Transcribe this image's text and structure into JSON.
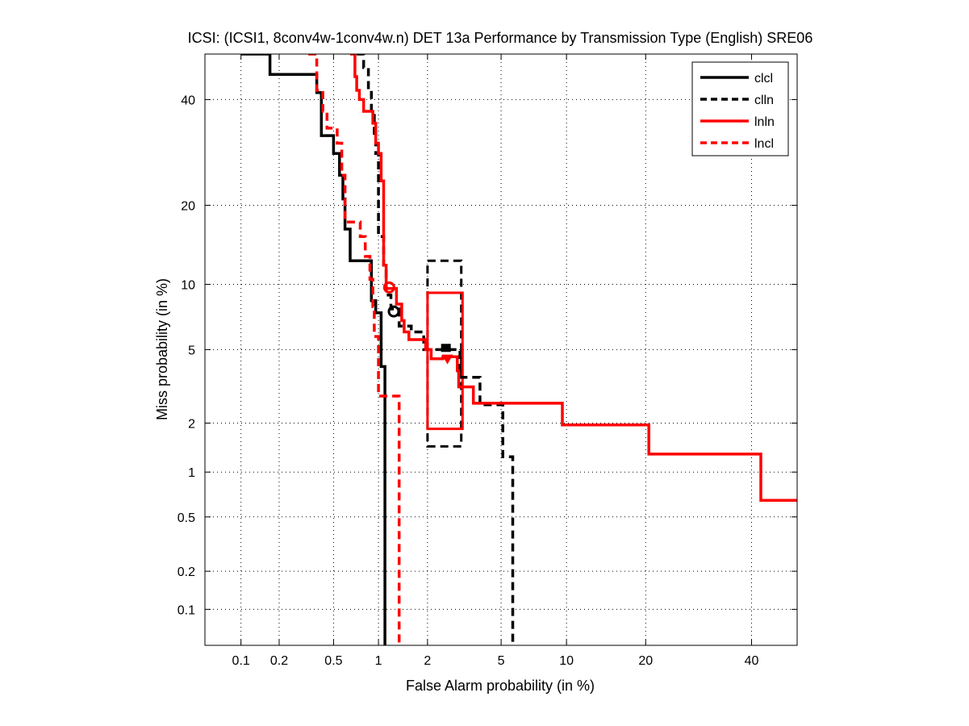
{
  "chart_data": {
    "type": "line",
    "title": "ICSI: (ICSI1, 8conv4w-1conv4w.n) DET 13a Performance by Transmission Type (English) SRE06",
    "xlabel": "False Alarm probability (in %)",
    "ylabel": "Miss probability (in %)",
    "scale": "normal-deviate (probit)",
    "xlim": [
      0.05,
      50
    ],
    "ylim": [
      0.05,
      50
    ],
    "xticks": [
      0.1,
      0.2,
      0.5,
      1,
      2,
      5,
      10,
      20,
      40
    ],
    "xtick_labels": [
      "0.1",
      "0.2",
      "0.5",
      "1",
      "2",
      "5",
      "10",
      "20",
      "40"
    ],
    "yticks": [
      0.1,
      0.2,
      0.5,
      1,
      2,
      5,
      10,
      20,
      40
    ],
    "ytick_labels": [
      "0.1",
      "0.2",
      "0.5",
      "1",
      "2",
      "5",
      "10",
      "20",
      "40"
    ],
    "grid": true,
    "legend_position": "top-right",
    "series": [
      {
        "name": "clcl",
        "color": "#000000",
        "style": "solid",
        "points": [
          [
            0.1,
            50
          ],
          [
            0.17,
            50
          ],
          [
            0.17,
            45.5
          ],
          [
            0.38,
            45.5
          ],
          [
            0.38,
            41.5
          ],
          [
            0.41,
            41.5
          ],
          [
            0.41,
            32.5
          ],
          [
            0.5,
            32.5
          ],
          [
            0.5,
            29
          ],
          [
            0.55,
            29
          ],
          [
            0.55,
            25
          ],
          [
            0.58,
            25
          ],
          [
            0.58,
            21
          ],
          [
            0.6,
            21
          ],
          [
            0.6,
            16.5
          ],
          [
            0.65,
            16.5
          ],
          [
            0.65,
            12.5
          ],
          [
            0.9,
            12.5
          ],
          [
            0.9,
            8.5
          ],
          [
            0.96,
            8.5
          ],
          [
            0.96,
            7.5
          ],
          [
            1.04,
            7.5
          ],
          [
            1.04,
            4.1
          ],
          [
            1.1,
            4.1
          ],
          [
            1.1,
            0.05
          ]
        ],
        "marker": {
          "x": 1.25,
          "y": 7.6,
          "shape": "circle"
        }
      },
      {
        "name": "clln",
        "color": "#000000",
        "style": "dashed",
        "points": [
          [
            0.72,
            50
          ],
          [
            0.8,
            50
          ],
          [
            0.8,
            47
          ],
          [
            0.86,
            47
          ],
          [
            0.86,
            42
          ],
          [
            0.9,
            42
          ],
          [
            0.9,
            37
          ],
          [
            0.94,
            37
          ],
          [
            0.94,
            32
          ],
          [
            0.96,
            32
          ],
          [
            0.96,
            29
          ],
          [
            1.0,
            29
          ],
          [
            1.0,
            15.5
          ],
          [
            1.08,
            15.5
          ],
          [
            1.08,
            12
          ],
          [
            1.12,
            12
          ],
          [
            1.12,
            9
          ],
          [
            1.2,
            9
          ],
          [
            1.2,
            7.8
          ],
          [
            1.35,
            7.8
          ],
          [
            1.35,
            6.5
          ],
          [
            1.6,
            6.5
          ],
          [
            1.6,
            6.1
          ],
          [
            1.9,
            6.1
          ],
          [
            1.9,
            5.0
          ],
          [
            3.05,
            5.0
          ],
          [
            3.05,
            3.6
          ],
          [
            3.9,
            3.6
          ],
          [
            3.9,
            2.55
          ],
          [
            5.1,
            2.55
          ],
          [
            5.1,
            1.25
          ],
          [
            5.7,
            1.25
          ],
          [
            5.7,
            0.05
          ]
        ],
        "marker": {
          "x": 2.55,
          "y": 5.1,
          "shape": "square"
        },
        "confidence_box": {
          "x": [
            2.0,
            3.1
          ],
          "y": [
            1.45,
            12.5
          ]
        }
      },
      {
        "name": "lnln",
        "color": "#ff0000",
        "style": "solid",
        "points": [
          [
            0.65,
            50
          ],
          [
            0.7,
            50
          ],
          [
            0.7,
            45
          ],
          [
            0.72,
            45
          ],
          [
            0.72,
            42
          ],
          [
            0.75,
            42
          ],
          [
            0.75,
            40
          ],
          [
            0.8,
            40
          ],
          [
            0.8,
            37.5
          ],
          [
            0.92,
            37.5
          ],
          [
            0.92,
            35
          ],
          [
            0.96,
            35
          ],
          [
            0.96,
            31
          ],
          [
            1.0,
            31
          ],
          [
            1.0,
            29
          ],
          [
            1.04,
            29
          ],
          [
            1.04,
            24
          ],
          [
            1.08,
            24
          ],
          [
            1.08,
            12
          ],
          [
            1.12,
            12
          ],
          [
            1.12,
            9.6
          ],
          [
            1.3,
            9.6
          ],
          [
            1.3,
            8.2
          ],
          [
            1.4,
            8.2
          ],
          [
            1.4,
            6.9
          ],
          [
            1.45,
            6.9
          ],
          [
            1.45,
            6.1
          ],
          [
            1.55,
            6.1
          ],
          [
            1.55,
            5.6
          ],
          [
            1.95,
            5.6
          ],
          [
            1.95,
            5.0
          ],
          [
            2.1,
            5.0
          ],
          [
            2.1,
            4.5
          ],
          [
            2.45,
            4.5
          ],
          [
            2.45,
            4.6
          ],
          [
            2.95,
            4.6
          ],
          [
            2.95,
            3.9
          ],
          [
            3.0,
            3.9
          ],
          [
            3.0,
            3.2
          ],
          [
            3.6,
            3.2
          ],
          [
            3.6,
            2.6
          ],
          [
            9.6,
            2.6
          ],
          [
            9.6,
            1.95
          ],
          [
            20.5,
            1.95
          ],
          [
            20.5,
            1.3
          ],
          [
            42,
            1.3
          ],
          [
            42,
            0.65
          ],
          [
            50,
            0.65
          ]
        ],
        "marker": {
          "x": 1.17,
          "y": 9.7,
          "shape": "circle"
        },
        "confidence_box": {
          "x": [
            2.0,
            3.15
          ],
          "y": [
            1.85,
            9.2
          ]
        }
      },
      {
        "name": "lncl",
        "color": "#ff0000",
        "style": "dashed",
        "points": [
          [
            0.33,
            50
          ],
          [
            0.38,
            50
          ],
          [
            0.38,
            42
          ],
          [
            0.42,
            42
          ],
          [
            0.42,
            37.5
          ],
          [
            0.45,
            37.5
          ],
          [
            0.45,
            34
          ],
          [
            0.53,
            34
          ],
          [
            0.53,
            31
          ],
          [
            0.57,
            31
          ],
          [
            0.57,
            25
          ],
          [
            0.6,
            25
          ],
          [
            0.6,
            17.5
          ],
          [
            0.76,
            17.5
          ],
          [
            0.76,
            15.5
          ],
          [
            0.82,
            15.5
          ],
          [
            0.82,
            13
          ],
          [
            0.88,
            13
          ],
          [
            0.88,
            10.5
          ],
          [
            0.92,
            10.5
          ],
          [
            0.92,
            8
          ],
          [
            0.94,
            8
          ],
          [
            0.94,
            5.8
          ],
          [
            1.0,
            5.8
          ],
          [
            1.0,
            2.85
          ],
          [
            1.35,
            2.85
          ],
          [
            1.35,
            0.05
          ]
        ],
        "marker": {
          "x": 2.6,
          "y": 4.5,
          "shape": "triangle-down"
        }
      }
    ]
  }
}
